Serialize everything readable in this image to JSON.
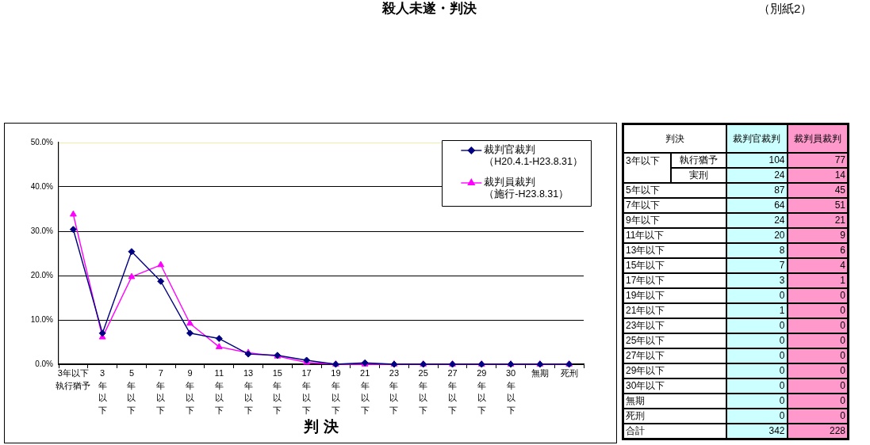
{
  "chart_data": [
    {
      "type": "line",
      "title": "殺人未遂・判決",
      "annotations": [
        "（別紙2）"
      ],
      "xlabel": "判 決",
      "categories": [
        "3年以下執行猶予",
        "3年以下",
        "5年以下",
        "7年以下",
        "9年以下",
        "11年以下",
        "13年以下",
        "15年以下",
        "17年以下",
        "19年以下",
        "21年以下",
        "23年以下",
        "25年以下",
        "27年以下",
        "29年以下",
        "30年以下",
        "無期",
        "死刑"
      ],
      "series": [
        {
          "name": "裁判官裁判（H20.4.1-H23.8.31）",
          "color": "#000080",
          "marker": "diamond",
          "values": [
            30.4,
            7.0,
            25.4,
            18.7,
            7.0,
            5.8,
            2.3,
            2.0,
            0.9,
            0,
            0.3,
            0,
            0,
            0,
            0,
            0,
            0,
            0
          ]
        },
        {
          "name": "裁判員裁判（施行-H23.8.31）",
          "color": "#ff00ff",
          "marker": "triangle",
          "values": [
            33.8,
            6.1,
            19.7,
            22.4,
            9.2,
            3.9,
            2.6,
            1.8,
            0.4,
            0,
            0,
            0,
            0,
            0,
            0,
            0,
            0,
            0
          ]
        }
      ],
      "ylim": [
        0,
        50
      ],
      "yticks": [
        {
          "value": 0,
          "label": "0.0%"
        },
        {
          "value": 10,
          "label": "10.0%"
        },
        {
          "value": 20,
          "label": "20.0%"
        },
        {
          "value": 30,
          "label": "30.0%"
        },
        {
          "value": 40,
          "label": "40.0%"
        },
        {
          "value": 50,
          "label": "50.0%"
        }
      ],
      "grid": "y",
      "legend": "top right",
      "line_style": "solid"
    },
    {
      "type": "heatmap",
      "ylabel": "判決",
      "categories": [
        "裁判官裁判",
        "裁判員裁判"
      ],
      "colors": [
        "#ccffff",
        "#ff99cc"
      ],
      "y_categories": [
        "3年以下",
        null,
        "5年以下",
        "7年以下",
        "9年以下",
        "11年以下",
        "13年以下",
        "15年以下",
        "17年以下",
        "19年以下",
        "21年以下",
        "23年以下",
        "25年以下",
        "27年以下",
        "29年以下",
        "30年以下",
        "無期",
        "死刑",
        "合計"
      ],
      "y2_categories": [
        "執行猶予",
        "実刑",
        null,
        null,
        null,
        null,
        null,
        null,
        null,
        null,
        null,
        null,
        null,
        null,
        null,
        null,
        null,
        null,
        null
      ],
      "cells": [
        [
          104,
          77
        ],
        [
          24,
          14
        ],
        [
          87,
          45
        ],
        [
          64,
          51
        ],
        [
          24,
          21
        ],
        [
          20,
          9
        ],
        [
          8,
          6
        ],
        [
          7,
          4
        ],
        [
          3,
          1
        ],
        [
          0,
          0
        ],
        [
          1,
          0
        ],
        [
          0,
          0
        ],
        [
          0,
          0
        ],
        [
          0,
          0
        ],
        [
          0,
          0
        ],
        [
          0,
          0
        ],
        [
          0,
          0
        ],
        [
          0,
          0
        ],
        [
          342,
          228
        ]
      ],
      "data_labels": true
    }
  ]
}
